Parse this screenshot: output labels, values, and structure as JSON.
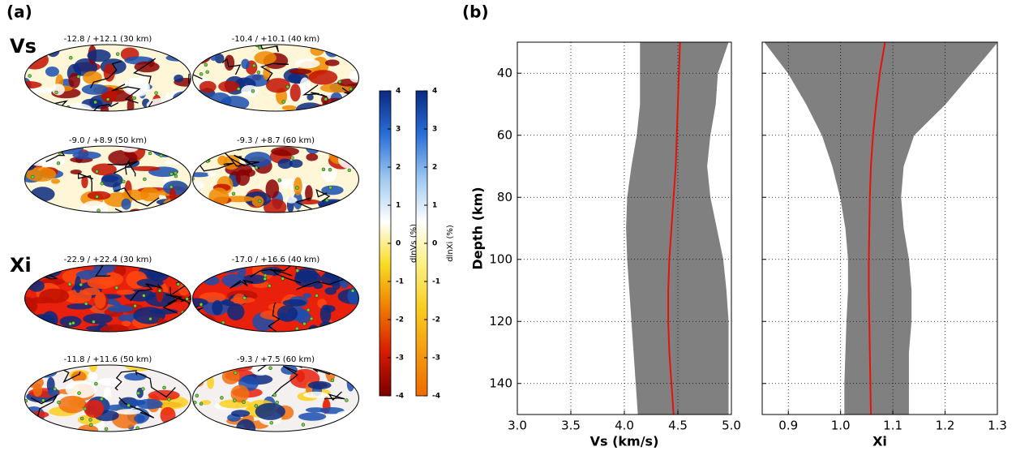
{
  "panel_labels": [
    "(a)",
    "(b)"
  ],
  "maps": {
    "rows": [
      {
        "label": "Vs",
        "titles": [
          "-12.8 / +12.1 (30 km)",
          "-10.4 / +10.1 (40 km)",
          "-9.0 / +8.9 (50 km)",
          "-9.3 / +8.7 (60 km)"
        ]
      },
      {
        "label": "Xi",
        "titles": [
          "-22.9 / +22.4 (30 km)",
          "-17.0 / +16.6 (40 km)",
          "-11.8 / +11.6 (50 km)",
          "-9.3 / +7.5 (60 km)"
        ]
      }
    ]
  },
  "colorbars": [
    {
      "label": "dlnVs (%)",
      "ylim": [
        -4,
        4
      ],
      "yticks": [
        -4,
        -3,
        -2,
        -1,
        0,
        1,
        2,
        3,
        4
      ],
      "colors": [
        "#7a0000",
        "#d81a00",
        "#f07a00",
        "#f8dc20",
        "#ffffff",
        "#9cc8f0",
        "#2a6ed8",
        "#0a2a80"
      ]
    },
    {
      "label": "dlnXi (%)",
      "ylim": [
        -4,
        4
      ],
      "yticks": [
        -4,
        -3,
        -2,
        -1,
        0,
        1,
        2,
        3,
        4
      ],
      "colors": [
        "#f06a00",
        "#f59a10",
        "#f8cc20",
        "#fcf080",
        "#ffffff",
        "#9cc8f0",
        "#2a6ed8",
        "#0a2a80"
      ]
    }
  ],
  "chart_data": [
    {
      "type": "line",
      "xlabel": "Vs (km/s)",
      "ylabel": "Depth (km)",
      "grid": true,
      "show_ytick_labels": true,
      "xlim": [
        3.0,
        5.0
      ],
      "xticks": [
        {
          "value": 3.0,
          "label": "3.0"
        },
        3.5,
        {
          "value": 4.0,
          "label": "4.0"
        },
        4.5,
        {
          "value": 5.0,
          "label": "5.0"
        }
      ],
      "ylim": [
        150,
        30
      ],
      "yticks": [
        40,
        60,
        80,
        100,
        120,
        140
      ],
      "y": [
        30,
        40,
        50,
        60,
        70,
        80,
        90,
        100,
        110,
        120,
        130,
        140,
        150
      ],
      "band": {
        "color": "#808080",
        "lower": [
          4.15,
          4.15,
          4.15,
          4.12,
          4.07,
          4.03,
          4.02,
          4.03,
          4.05,
          4.07,
          4.09,
          4.11,
          4.13
        ],
        "upper": [
          4.97,
          4.87,
          4.85,
          4.8,
          4.77,
          4.8,
          4.86,
          4.92,
          4.95,
          4.97,
          4.97,
          4.97,
          4.97
        ]
      },
      "series": [
        {
          "color": "#e8100a",
          "values": [
            4.52,
            4.51,
            4.5,
            4.49,
            4.48,
            4.46,
            4.44,
            4.42,
            4.41,
            4.41,
            4.42,
            4.44,
            4.46
          ]
        }
      ]
    },
    {
      "type": "line",
      "xlabel": "Xi",
      "grid": true,
      "show_ytick_labels": false,
      "xlim": [
        0.85,
        1.3
      ],
      "xticks": [
        0.9,
        {
          "value": 1.0,
          "label": "1.0"
        },
        1.1,
        1.2,
        1.3
      ],
      "ylim": [
        150,
        30
      ],
      "yticks": [
        40,
        60,
        80,
        100,
        120,
        140
      ],
      "y": [
        30,
        40,
        50,
        60,
        70,
        80,
        90,
        100,
        110,
        120,
        130,
        140,
        150
      ],
      "band": {
        "color": "#808080",
        "lower": [
          0.855,
          0.9,
          0.935,
          0.965,
          0.985,
          1.0,
          1.01,
          1.015,
          1.015,
          1.012,
          1.01,
          1.008,
          1.008
        ],
        "upper": [
          1.3,
          1.25,
          1.2,
          1.14,
          1.12,
          1.115,
          1.12,
          1.13,
          1.135,
          1.135,
          1.13,
          1.13,
          1.13
        ]
      },
      "series": [
        {
          "color": "#e8100a",
          "values": [
            1.085,
            1.075,
            1.068,
            1.062,
            1.058,
            1.056,
            1.055,
            1.054,
            1.054,
            1.055,
            1.056,
            1.057,
            1.058
          ]
        }
      ]
    }
  ]
}
